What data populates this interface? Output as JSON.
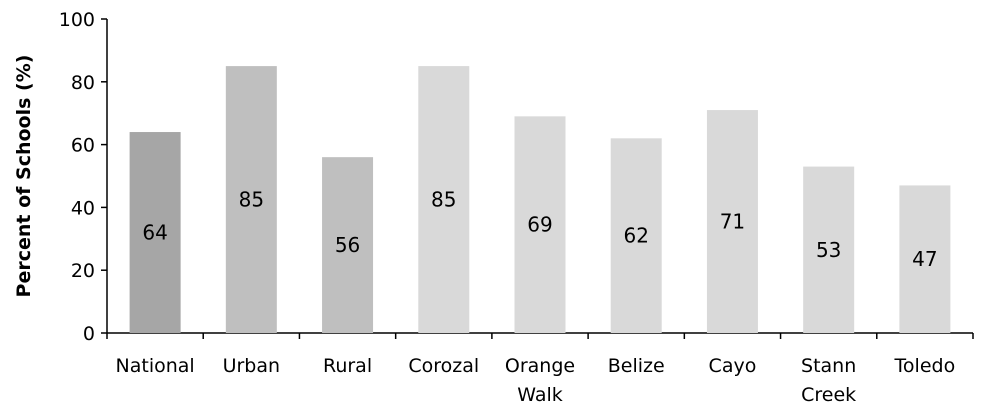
{
  "chart_data": {
    "type": "bar",
    "categories": [
      "National",
      "Urban",
      "Rural",
      "Corozal",
      "Orange Walk",
      "Belize",
      "Cayo",
      "Stann Creek",
      "Toledo"
    ],
    "values": [
      64,
      85,
      56,
      85,
      69,
      62,
      71,
      53,
      47
    ],
    "bar_colors": [
      "#a6a6a6",
      "#bfbfbf",
      "#bfbfbf",
      "#d9d9d9",
      "#d9d9d9",
      "#d9d9d9",
      "#d9d9d9",
      "#d9d9d9",
      "#d9d9d9"
    ],
    "title": "",
    "xlabel": "",
    "ylabel": "Percent of Schools (%)",
    "ylim": [
      0,
      100
    ],
    "yticks": [
      0,
      20,
      40,
      60,
      80,
      100
    ],
    "grid": false,
    "legend": "none",
    "data_labels": true
  }
}
